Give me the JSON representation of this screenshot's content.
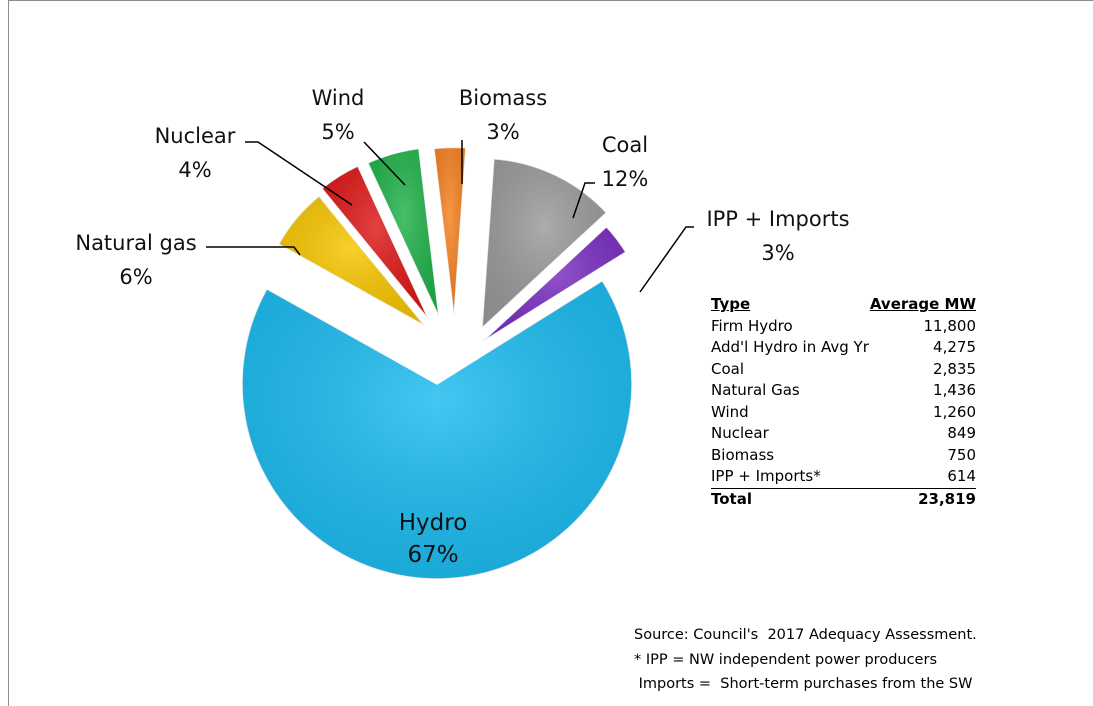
{
  "chart_data": {
    "type": "pie",
    "slices": [
      {
        "key": "hydro",
        "label": "Hydro",
        "pct_label": "67%",
        "value": 67,
        "color": "#1BBBEF"
      },
      {
        "key": "natural_gas",
        "label": "Natural gas",
        "pct_label": "6%",
        "value": 6,
        "color": "#F7C600"
      },
      {
        "key": "nuclear",
        "label": "Nuclear",
        "pct_label": "4%",
        "value": 4,
        "color": "#DE1818"
      },
      {
        "key": "wind",
        "label": "Wind",
        "pct_label": "5%",
        "value": 5,
        "color": "#20B24A"
      },
      {
        "key": "biomass",
        "label": "Biomass",
        "pct_label": "3%",
        "value": 3,
        "color": "#F58220"
      },
      {
        "key": "coal",
        "label": "Coal",
        "pct_label": "12%",
        "value": 12,
        "color": "#9A9A9A"
      },
      {
        "key": "ipp_imports",
        "label": "IPP + Imports",
        "pct_label": "3%",
        "value": 3,
        "color": "#7A2FC2"
      }
    ],
    "legend": "none"
  },
  "table": {
    "header": {
      "type": "Type",
      "value": "Average MW"
    },
    "rows": [
      {
        "type": "Firm Hydro",
        "value": "11,800"
      },
      {
        "type": "Add'l Hydro in Avg Yr",
        "value": "4,275"
      },
      {
        "type": "Coal",
        "value": "2,835"
      },
      {
        "type": "Natural Gas",
        "value": "1,436"
      },
      {
        "type": "Wind",
        "value": "1,260"
      },
      {
        "type": "Nuclear",
        "value": "849"
      },
      {
        "type": "Biomass",
        "value": "750"
      },
      {
        "type": "IPP + Imports*",
        "value": "614"
      }
    ],
    "total": {
      "type": "Total",
      "value": "23,819"
    }
  },
  "notes": {
    "source": "Source: Council's  2017 Adequacy Assessment.",
    "ipp": "* IPP = NW independent power producers",
    "imports": " Imports =  Short-term purchases from the SW"
  }
}
